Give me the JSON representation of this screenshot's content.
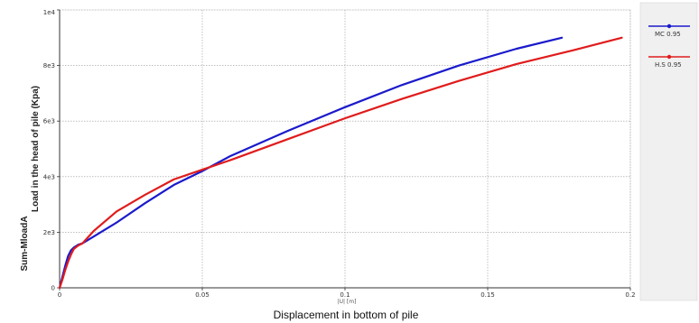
{
  "chart_data": {
    "type": "line",
    "xlabel": "Displacement in bottom of pile",
    "ylabel": "Load in the head of pile (Kpa)",
    "y_axis_name": "Sum-MloadA",
    "x_axis_inner_label": "|U| [m]",
    "xlim": [
      0,
      0.2
    ],
    "ylim": [
      0,
      10000
    ],
    "x_ticks": [
      0,
      0.05,
      0.1,
      0.15,
      0.2
    ],
    "x_tick_labels": [
      "0",
      "0.05",
      "0.1",
      "0.15",
      "0.2"
    ],
    "y_ticks": [
      0,
      2000,
      4000,
      6000,
      8000,
      10000
    ],
    "y_tick_labels": [
      "0",
      "2e3",
      "4e3",
      "6e3",
      "8e3",
      "1e4"
    ],
    "grid": true,
    "legend_position": "right",
    "series": [
      {
        "name": "MC 0.95",
        "color": "#1a1acc",
        "x": [
          0,
          0.001,
          0.002,
          0.003,
          0.004,
          0.005,
          0.0065,
          0.008,
          0.012,
          0.02,
          0.03,
          0.04,
          0.05,
          0.06,
          0.08,
          0.1,
          0.12,
          0.14,
          0.16,
          0.176
        ],
        "y": [
          0,
          400,
          800,
          1150,
          1350,
          1450,
          1550,
          1600,
          1850,
          2350,
          3050,
          3700,
          4200,
          4750,
          5650,
          6500,
          7300,
          8000,
          8600,
          9000
        ]
      },
      {
        "name": "H.S 0.95",
        "color": "#e01c1c",
        "x": [
          0,
          0.001,
          0.002,
          0.003,
          0.004,
          0.005,
          0.0065,
          0.008,
          0.012,
          0.02,
          0.03,
          0.04,
          0.05,
          0.06,
          0.08,
          0.1,
          0.12,
          0.14,
          0.16,
          0.18,
          0.197
        ],
        "y": [
          0,
          300,
          650,
          950,
          1200,
          1400,
          1520,
          1600,
          2050,
          2750,
          3350,
          3900,
          4250,
          4600,
          5350,
          6100,
          6800,
          7450,
          8050,
          8550,
          9000
        ]
      }
    ]
  }
}
